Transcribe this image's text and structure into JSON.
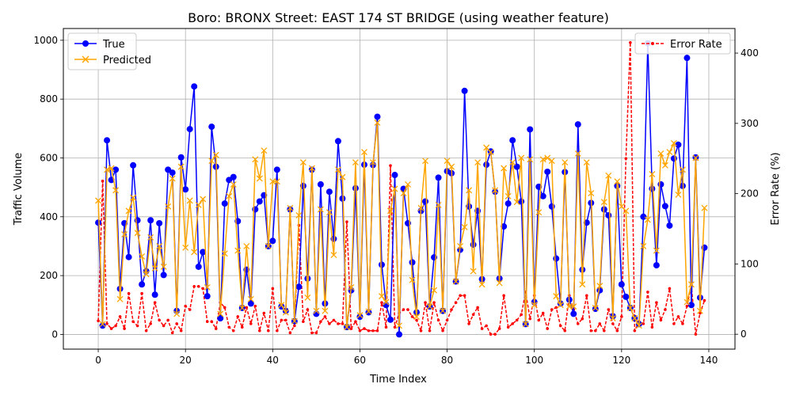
{
  "chart_data": {
    "type": "line",
    "title": "Boro: BRONX Street: EAST 174 ST BRIDGE (using weather feature)",
    "xlabel": "Time Index",
    "ylabel": "Traffic Volume",
    "y2label": "Error Rate (%)",
    "xlim": [
      -8,
      146
    ],
    "ylim": [
      -50,
      1040
    ],
    "y2lim": [
      -21.2,
      435
    ],
    "xticks": [
      0,
      20,
      40,
      60,
      80,
      100,
      120,
      140
    ],
    "yticks": [
      0,
      200,
      400,
      600,
      800,
      1000
    ],
    "y2ticks": [
      0,
      100,
      200,
      300,
      400
    ],
    "grid": true,
    "legend_left": "upper-left",
    "legend_right": "upper-right",
    "colors": {
      "true": "#0000ff",
      "predicted": "#ffa500",
      "error": "#ff0000"
    },
    "x": [
      0,
      1,
      2,
      3,
      4,
      5,
      6,
      7,
      8,
      9,
      10,
      11,
      12,
      13,
      14,
      15,
      16,
      17,
      18,
      19,
      20,
      21,
      22,
      23,
      24,
      25,
      26,
      27,
      28,
      29,
      30,
      31,
      32,
      33,
      34,
      35,
      36,
      37,
      38,
      39,
      40,
      41,
      42,
      43,
      44,
      45,
      46,
      47,
      48,
      49,
      50,
      51,
      52,
      53,
      54,
      55,
      56,
      57,
      58,
      59,
      60,
      61,
      62,
      63,
      64,
      65,
      66,
      67,
      68,
      69,
      70,
      71,
      72,
      73,
      74,
      75,
      76,
      77,
      78,
      79,
      80,
      81,
      82,
      83,
      84,
      85,
      86,
      87,
      88,
      89,
      90,
      91,
      92,
      93,
      94,
      95,
      96,
      97,
      98,
      99,
      100,
      101,
      102,
      103,
      104,
      105,
      106,
      107,
      108,
      109,
      110,
      111,
      112,
      113,
      114,
      115,
      116,
      117,
      118,
      119,
      120,
      121,
      122,
      123,
      124,
      125,
      126,
      127,
      128,
      129,
      130,
      131,
      132,
      133,
      134,
      135,
      136,
      137,
      138,
      139
    ],
    "series": [
      {
        "name": "True",
        "axis": "left",
        "values": [
          380,
          30,
          660,
          525,
          560,
          155,
          378,
          263,
          575,
          388,
          170,
          215,
          388,
          135,
          378,
          202,
          560,
          550,
          80,
          602,
          493,
          698,
          843,
          230,
          280,
          130,
          706,
          570,
          55,
          445,
          525,
          535,
          385,
          90,
          220,
          105,
          425,
          452,
          473,
          300,
          318,
          560,
          95,
          80,
          425,
          45,
          162,
          505,
          190,
          560,
          70,
          510,
          105,
          485,
          325,
          657,
          462,
          25,
          150,
          497,
          60,
          577,
          75,
          576,
          740,
          237,
          100,
          50,
          542,
          0,
          495,
          378,
          245,
          75,
          420,
          452,
          95,
          262,
          533,
          80,
          555,
          548,
          180,
          288,
          828,
          435,
          305,
          420,
          188,
          577,
          622,
          485,
          190,
          367,
          445,
          660,
          570,
          452,
          35,
          697,
          110,
          502,
          470,
          553,
          435,
          258,
          105,
          552,
          118,
          70,
          714,
          220,
          380,
          447,
          87,
          150,
          425,
          405,
          62,
          505,
          170,
          128,
          90,
          55,
          35,
          400,
          990,
          495,
          235,
          510,
          436,
          370,
          598,
          645,
          505,
          940,
          100,
          602,
          125,
          295
        ]
      },
      {
        "name": "Predicted",
        "axis": "left",
        "values": [
          455,
          35,
          560,
          565,
          490,
          120,
          340,
          420,
          465,
          345,
          265,
          205,
          330,
          225,
          300,
          230,
          435,
          530,
          70,
          570,
          295,
          455,
          280,
          440,
          460,
          160,
          590,
          610,
          70,
          275,
          470,
          510,
          285,
          90,
          300,
          120,
          595,
          530,
          625,
          300,
          520,
          520,
          100,
          75,
          430,
          45,
          405,
          585,
          125,
          565,
          80,
          425,
          80,
          415,
          270,
          560,
          535,
          25,
          160,
          585,
          65,
          620,
          78,
          585,
          720,
          130,
          110,
          420,
          495,
          30,
          480,
          510,
          185,
          60,
          430,
          590,
          95,
          150,
          440,
          80,
          590,
          570,
          180,
          300,
          365,
          490,
          215,
          585,
          170,
          635,
          620,
          490,
          175,
          565,
          470,
          585,
          450,
          600,
          35,
          595,
          100,
          415,
          595,
          600,
          590,
          130,
          100,
          585,
          95,
          95,
          615,
          170,
          585,
          480,
          90,
          165,
          450,
          540,
          55,
          520,
          435,
          420,
          90,
          55,
          30,
          300,
          390,
          545,
          285,
          615,
          575,
          620,
          650,
          475,
          560,
          110,
          170,
          600,
          80,
          430
        ]
      },
      {
        "name": "Error Rate",
        "axis": "right",
        "values": [
          19,
          218,
          15,
          8,
          12,
          25,
          8,
          58,
          18,
          12,
          58,
          5,
          15,
          45,
          20,
          12,
          20,
          2,
          15,
          5,
          40,
          35,
          68,
          68,
          65,
          18,
          18,
          8,
          45,
          38,
          10,
          5,
          25,
          10,
          38,
          15,
          40,
          5,
          30,
          5,
          65,
          5,
          20,
          20,
          2,
          12,
          155,
          18,
          35,
          2,
          2,
          18,
          25,
          15,
          20,
          15,
          15,
          160,
          8,
          18,
          5,
          8,
          5,
          5,
          5,
          45,
          10,
          240,
          10,
          30,
          35,
          35,
          25,
          20,
          5,
          45,
          5,
          45,
          20,
          5,
          20,
          35,
          45,
          55,
          55,
          15,
          28,
          38,
          8,
          12,
          0,
          0,
          8,
          55,
          10,
          15,
          20,
          28,
          60,
          22,
          55,
          20,
          30,
          8,
          35,
          38,
          12,
          5,
          55,
          35,
          15,
          22,
          55,
          5,
          5,
          15,
          5,
          35,
          15,
          5,
          25,
          250,
          415,
          5,
          18,
          15,
          60,
          10,
          45,
          20,
          35,
          65,
          15,
          25,
          15,
          40,
          70,
          0,
          30,
          48
        ]
      }
    ]
  }
}
